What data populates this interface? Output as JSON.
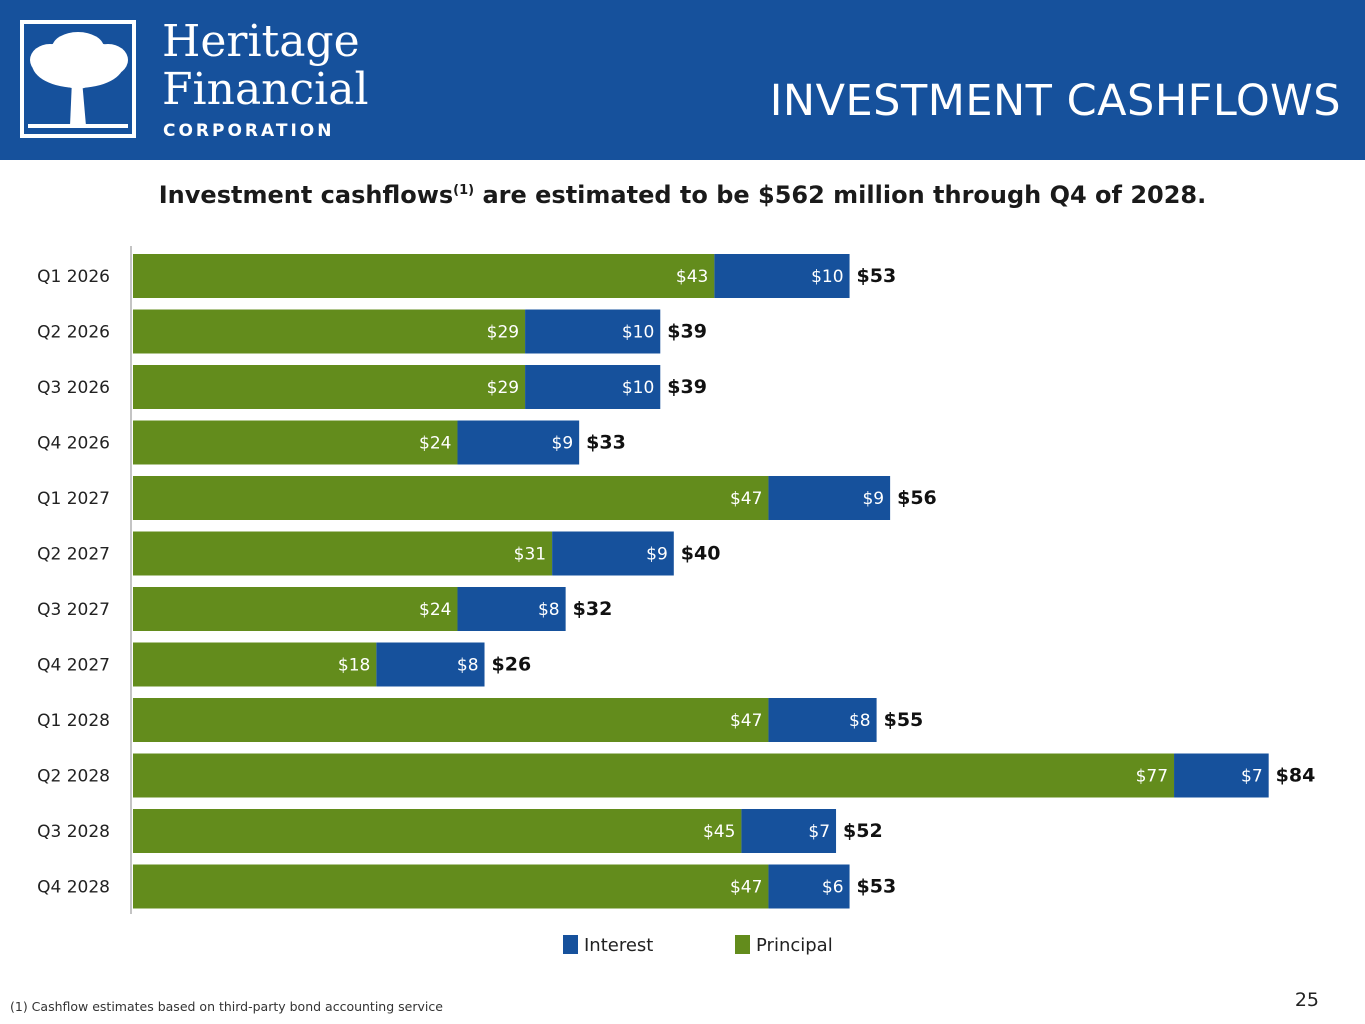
{
  "header": {
    "logo_line1": "Heritage",
    "logo_line2": "Financial",
    "logo_line3": "CORPORATION",
    "title": "INVESTMENT CASHFLOWS",
    "background": "#16519c"
  },
  "subtitle": {
    "text_before": "Investment cashflows",
    "superscript": "(1)",
    "text_after": " are estimated to be $562 million through Q4 of 2028."
  },
  "chart_data": {
    "type": "bar",
    "orientation": "horizontal",
    "stacked": true,
    "categories": [
      "Q1 2026",
      "Q2 2026",
      "Q3 2026",
      "Q4 2026",
      "Q1 2027",
      "Q2 2027",
      "Q3 2027",
      "Q4 2027",
      "Q1 2028",
      "Q2 2028",
      "Q3 2028",
      "Q4 2028"
    ],
    "series": [
      {
        "name": "Principal",
        "color": "#638c1c",
        "values": [
          43,
          29,
          29,
          24,
          47,
          31,
          24,
          18,
          47,
          77,
          45,
          47
        ],
        "labels": [
          "$43",
          "$29",
          "$29",
          "$24",
          "$47",
          "$31",
          "$24",
          "$18",
          "$47",
          "$77",
          "$45",
          "$47"
        ]
      },
      {
        "name": "Interest",
        "color": "#16519c",
        "values": [
          10,
          10,
          10,
          9,
          9,
          9,
          8,
          8,
          8,
          7,
          7,
          6
        ],
        "labels": [
          "$10",
          "$10",
          "$10",
          "$9",
          "$9",
          "$9",
          "$8",
          "$8",
          "$8",
          "$7",
          "$7",
          "$6"
        ]
      }
    ],
    "totals": [
      53,
      39,
      39,
      33,
      56,
      40,
      32,
      26,
      55,
      84,
      52,
      53
    ],
    "total_labels": [
      "$53",
      "$39",
      "$39",
      "$33",
      "$56",
      "$40",
      "$32",
      "$26",
      "$55",
      "$84",
      "$52",
      "$53"
    ],
    "xlim": [
      0,
      84
    ],
    "grid": false,
    "legend_position": "bottom-center"
  },
  "legend": {
    "interest_label": "Interest",
    "principal_label": "Principal",
    "interest_color": "#16519c",
    "principal_color": "#638c1c"
  },
  "footnote": "(1) Cashflow estimates based on third-party bond accounting service",
  "page_number": "25"
}
